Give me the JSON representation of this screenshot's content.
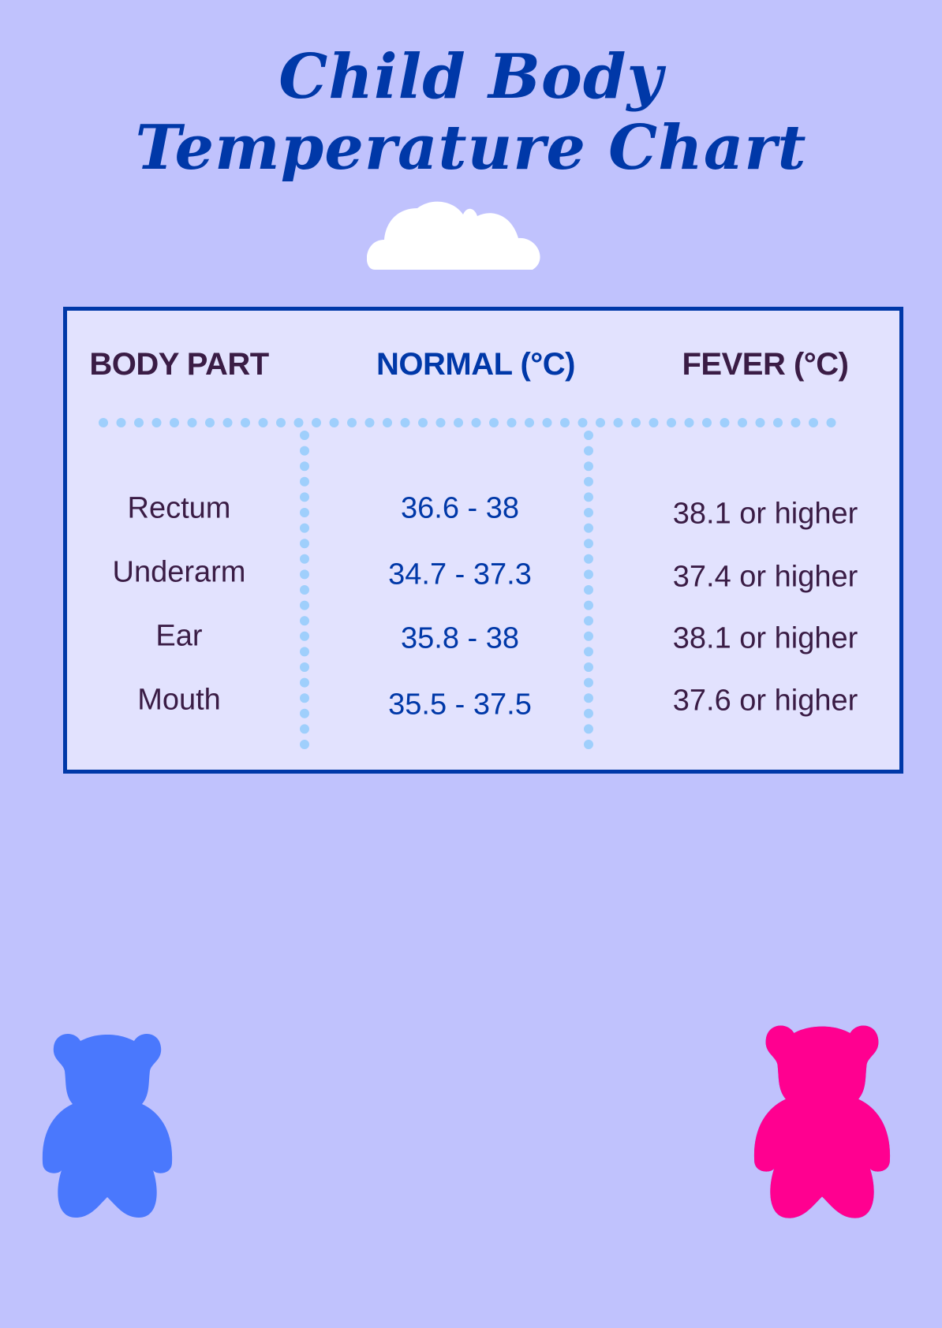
{
  "title": {
    "line1": "Child Body",
    "line2": "Temperature Chart"
  },
  "table": {
    "headers": [
      "BODY PART",
      "NORMAL (°C)",
      "FEVER (°C)"
    ],
    "rows": [
      {
        "part": "Rectum",
        "normal": "36.6 - 38",
        "fever": "38.1 or higher"
      },
      {
        "part": "Underarm",
        "normal": "34.7 - 37.3",
        "fever": "37.4 or higher"
      },
      {
        "part": "Ear",
        "normal": "35.8 - 38",
        "fever": "38.1 or higher"
      },
      {
        "part": "Mouth",
        "normal": "35.5 - 37.5",
        "fever": "37.6 or higher"
      }
    ]
  },
  "decorations": {
    "cloud": "cloud-icon",
    "bear_left": "teddy-bear-icon",
    "bear_right": "teddy-bear-icon"
  },
  "colors": {
    "background": "#c0c2fd",
    "panel": "#e2e2fe",
    "accent": "#0038a8",
    "text": "#3a1c45",
    "dots": "#9fcffc",
    "bear_blue": "#4a78fd",
    "bear_pink": "#ff0090"
  }
}
